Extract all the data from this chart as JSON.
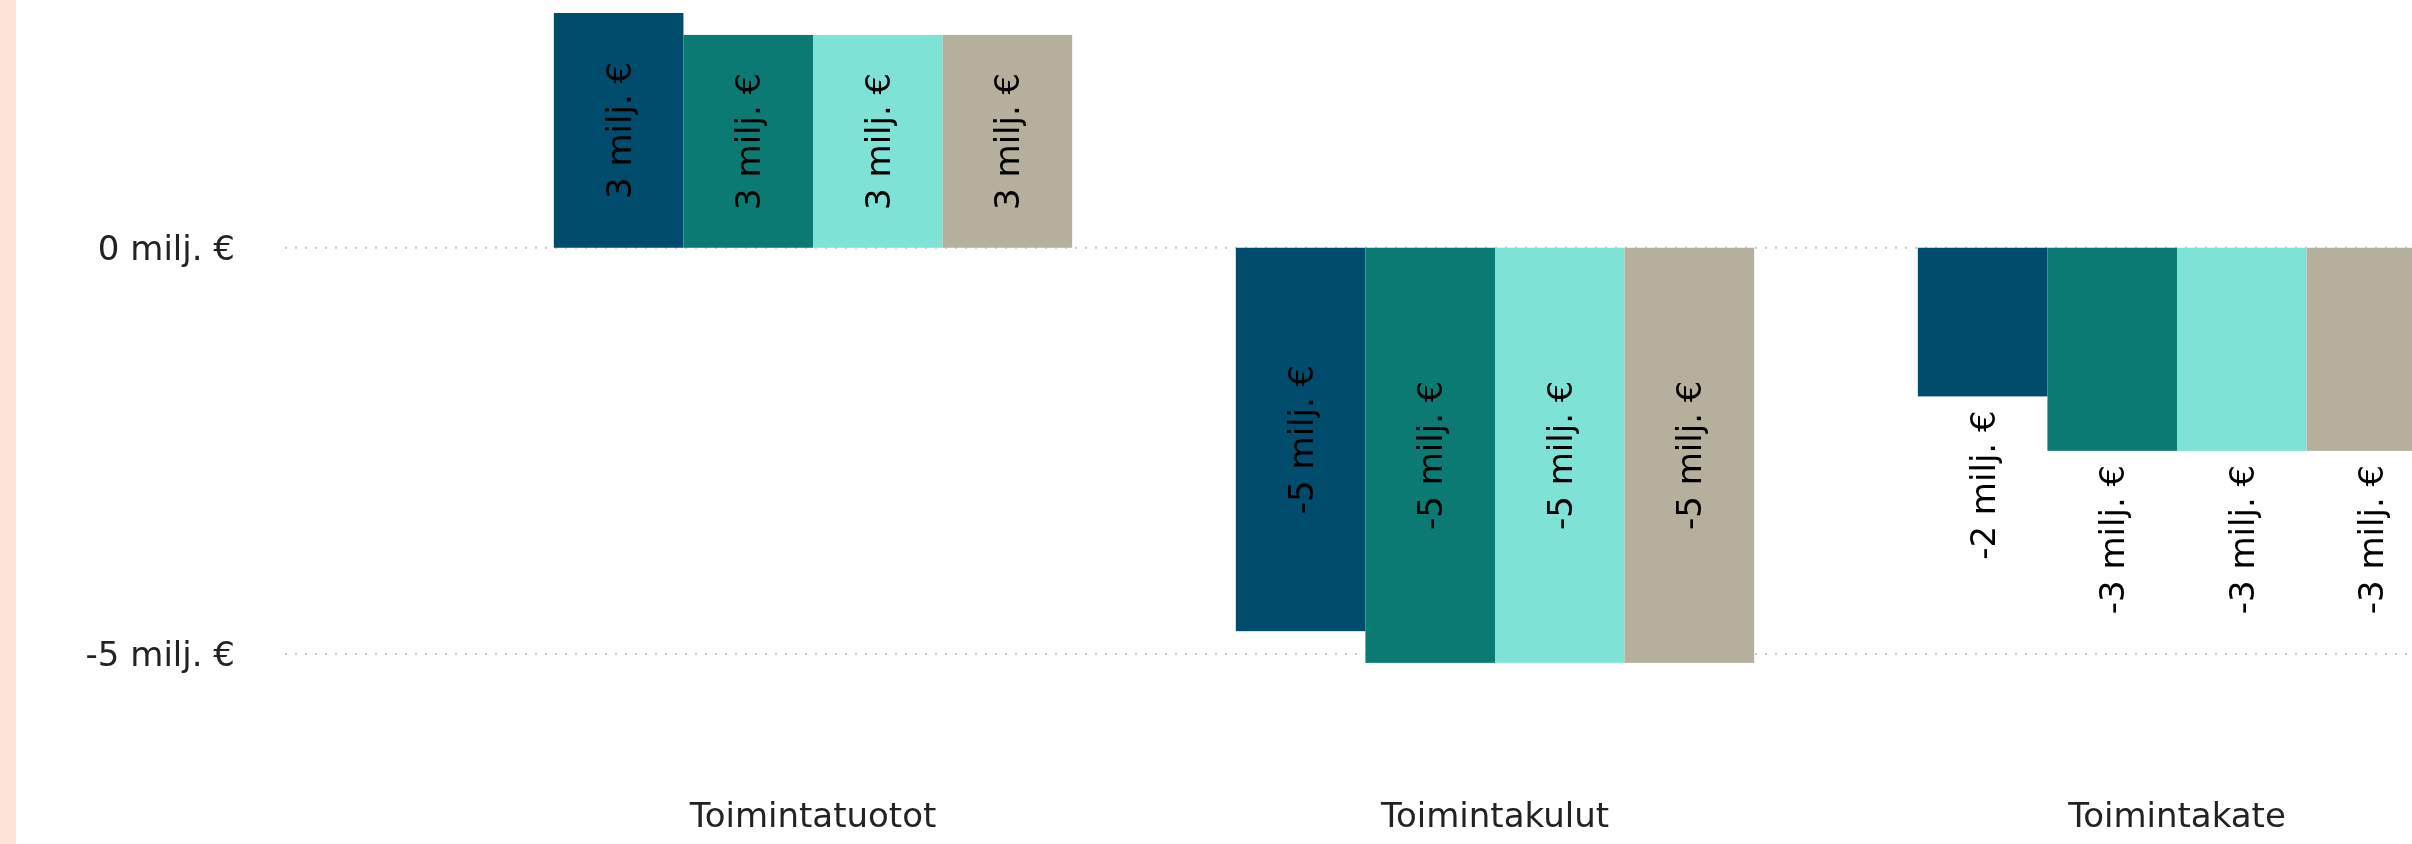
{
  "chart_data": {
    "type": "bar",
    "categories": [
      "Toimintatuotot",
      "Toimintakulut",
      "Toimintakate"
    ],
    "series": [
      {
        "color": "#004c6d",
        "values": [
          2.89,
          -4.72,
          -1.83
        ],
        "value_labels": [
          "3 milj. €",
          "-5 milj. €",
          "-2 milj. €"
        ]
      },
      {
        "color": "#0a7a73",
        "values": [
          2.62,
          -5.11,
          -2.5
        ],
        "value_labels": [
          "3 milj. €",
          "-5 milj. €",
          "-3 milj. €"
        ]
      },
      {
        "color": "#7ee3d6",
        "values": [
          2.62,
          -5.11,
          -2.5
        ],
        "value_labels": [
          "3 milj. €",
          "-5 milj. €",
          "-3 milj. €"
        ]
      },
      {
        "color": "#b5b09c",
        "values": [
          2.62,
          -5.11,
          -2.5
        ],
        "value_labels": [
          "3 milj. €",
          "-5 milj. €",
          "-3 milj. €"
        ]
      }
    ],
    "ylim": [
      -7.34,
      3.05
    ],
    "yticks": [
      {
        "value": 0,
        "label": "0 milj. €"
      },
      {
        "value": -5,
        "label": "-5 milj. €"
      }
    ],
    "grid": "y"
  }
}
